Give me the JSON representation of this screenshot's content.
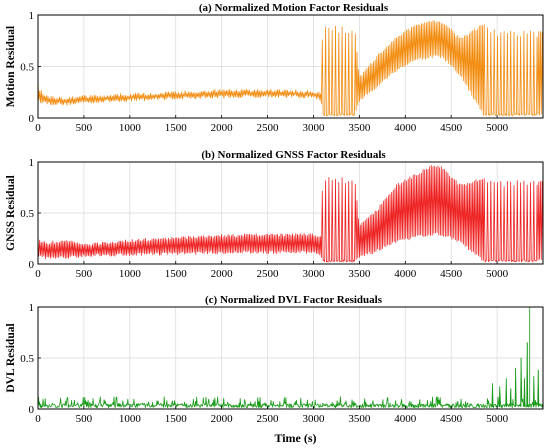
{
  "chart_data": [
    {
      "type": "line",
      "title": "(a) Normalized Motion Factor Residuals",
      "xlabel": "",
      "ylabel": "Motion Residual",
      "xlim": [
        0,
        5500
      ],
      "ylim": [
        0,
        1
      ],
      "xticks": [
        0,
        500,
        1000,
        1500,
        2000,
        2500,
        3000,
        3500,
        4000,
        4500,
        5000
      ],
      "yticks": [
        0,
        0.5,
        1
      ],
      "ytick_labels": [
        "0",
        "0.5",
        "1"
      ],
      "grid": true,
      "color": "#F28C0F",
      "series": [
        {
          "style": "dense-oscillation",
          "envelope_x": [
            0,
            20,
            100,
            300,
            500,
            1000,
            1500,
            2000,
            2500,
            3000,
            3080,
            3100,
            3150,
            3450,
            3500,
            3700,
            3900,
            4100,
            4300,
            4400,
            4600,
            4850,
            4900,
            5000,
            5500
          ],
          "envelope_low": [
            0.15,
            0.15,
            0.13,
            0.12,
            0.14,
            0.16,
            0.18,
            0.19,
            0.2,
            0.19,
            0.17,
            0.02,
            0.02,
            0.02,
            0.15,
            0.3,
            0.45,
            0.55,
            0.58,
            0.58,
            0.4,
            0.02,
            0.02,
            0.02,
            0.02
          ],
          "envelope_high": [
            0.37,
            0.28,
            0.22,
            0.21,
            0.22,
            0.24,
            0.26,
            0.28,
            0.28,
            0.27,
            0.25,
            0.92,
            0.9,
            0.88,
            0.4,
            0.62,
            0.8,
            0.9,
            0.95,
            0.95,
            0.78,
            0.92,
            0.88,
            0.85,
            0.85
          ],
          "sparse_spike_ranges": [
            [
              3100,
              3450
            ],
            [
              4870,
              5450
            ]
          ]
        }
      ]
    },
    {
      "type": "line",
      "title": "(b) Normalized GNSS Factor Residuals",
      "xlabel": "",
      "ylabel": "GNSS Residual",
      "xlim": [
        0,
        5500
      ],
      "ylim": [
        0,
        1
      ],
      "xticks": [
        0,
        500,
        1000,
        1500,
        2000,
        2500,
        3000,
        3500,
        4000,
        4500,
        5000
      ],
      "yticks": [
        0,
        0.5,
        1
      ],
      "ytick_labels": [
        "0",
        "0.5",
        "1"
      ],
      "grid": true,
      "color": "#EE2222",
      "series": [
        {
          "style": "dense-oscillation",
          "envelope_x": [
            0,
            100,
            300,
            500,
            1000,
            1500,
            2000,
            2500,
            3000,
            3080,
            3100,
            3150,
            3450,
            3500,
            3700,
            3900,
            4100,
            4300,
            4400,
            4600,
            4850,
            4900,
            5000,
            5500
          ],
          "envelope_low": [
            0.06,
            0.05,
            0.05,
            0.07,
            0.08,
            0.09,
            0.1,
            0.1,
            0.1,
            0.08,
            0.02,
            0.02,
            0.02,
            0.05,
            0.12,
            0.2,
            0.25,
            0.28,
            0.28,
            0.2,
            0.02,
            0.02,
            0.02,
            0.02
          ],
          "envelope_high": [
            0.25,
            0.22,
            0.24,
            0.2,
            0.24,
            0.27,
            0.29,
            0.3,
            0.3,
            0.28,
            0.85,
            0.85,
            0.85,
            0.4,
            0.55,
            0.78,
            0.88,
            0.98,
            0.96,
            0.78,
            0.85,
            0.85,
            0.82,
            0.82
          ],
          "sparse_spike_ranges": [
            [
              3100,
              3450
            ],
            [
              4870,
              5450
            ]
          ]
        }
      ]
    },
    {
      "type": "line",
      "title": "(c) Normalized DVL Factor Residuals",
      "xlabel": "Time (s)",
      "ylabel": "DVL Residual",
      "xlim": [
        0,
        5500
      ],
      "ylim": [
        0,
        1
      ],
      "xticks": [
        0,
        500,
        1000,
        1500,
        2000,
        2500,
        3000,
        3500,
        4000,
        4500,
        5000
      ],
      "yticks": [
        0,
        0.5,
        1
      ],
      "ytick_labels": [
        "0",
        "0.5",
        "1"
      ],
      "grid": true,
      "color": "#1A9A1A",
      "series": [
        {
          "style": "noise",
          "baseline": 0.04,
          "noise_peak": 0.12,
          "spikes": [
            [
              4950,
              0.25
            ],
            [
              5030,
              0.22
            ],
            [
              5100,
              0.3
            ],
            [
              5150,
              0.2
            ],
            [
              5200,
              0.4
            ],
            [
              5260,
              0.5
            ],
            [
              5300,
              0.3
            ],
            [
              5330,
              0.65
            ],
            [
              5355,
              1.0
            ],
            [
              5400,
              0.32
            ],
            [
              5450,
              0.38
            ]
          ]
        }
      ]
    }
  ]
}
